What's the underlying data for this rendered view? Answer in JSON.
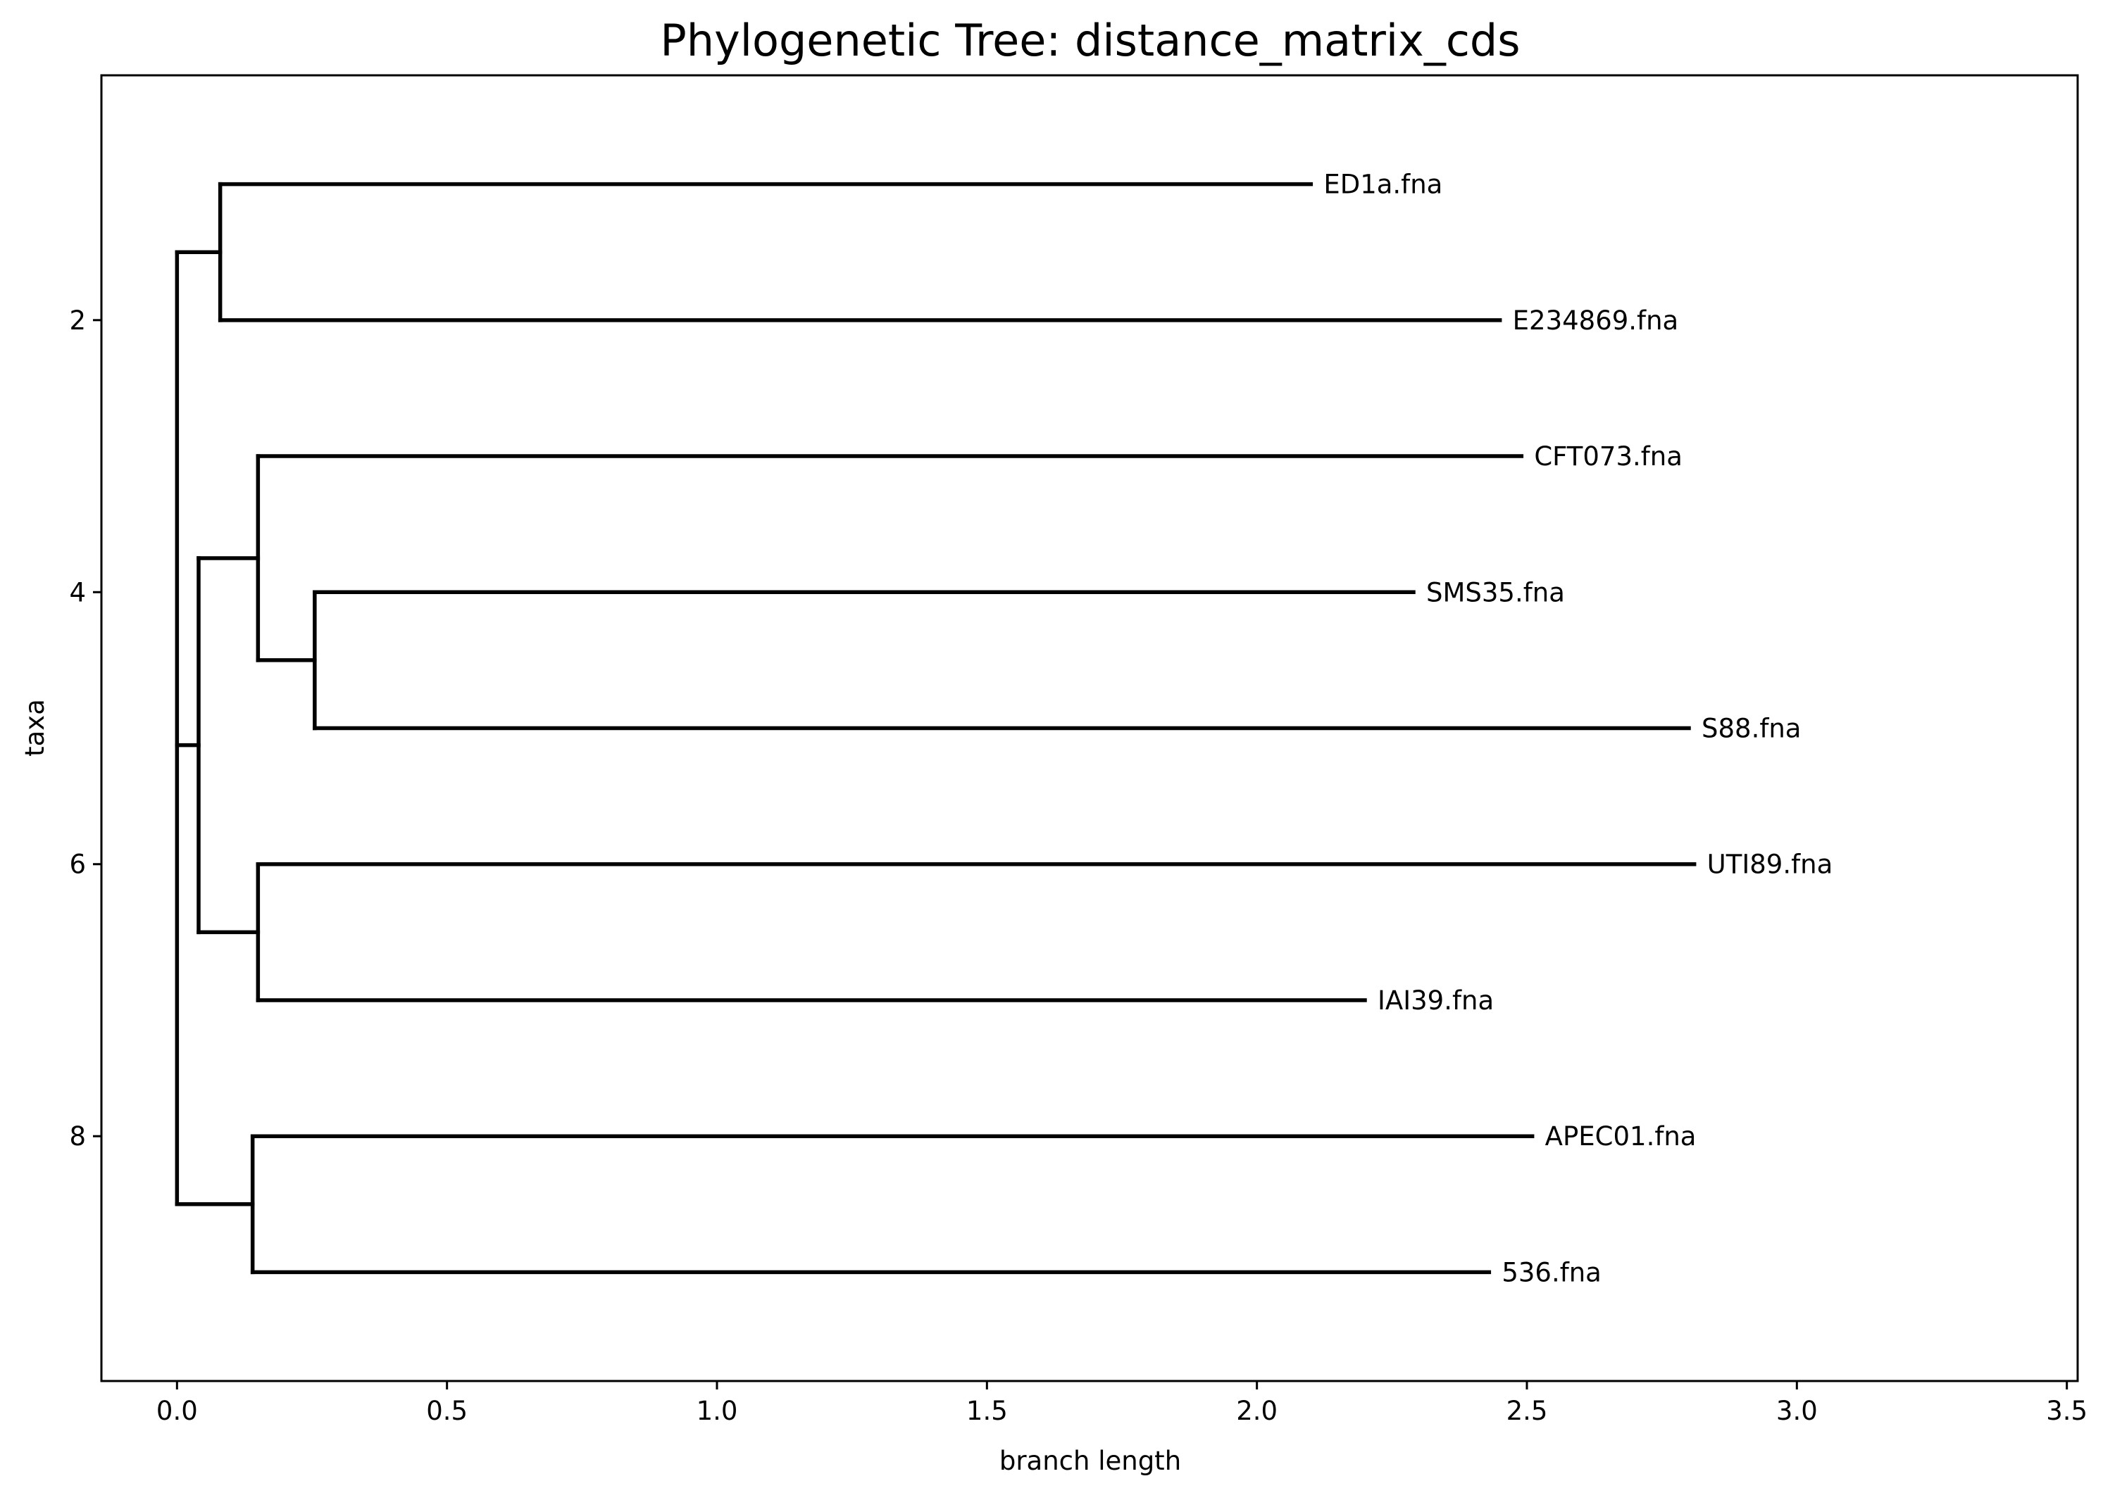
{
  "chart_data": {
    "type": "phylogenetic-tree",
    "title": "Phylogenetic Tree: distance_matrix_cds",
    "xlabel": "branch length",
    "ylabel": "taxa",
    "xlim": [
      -0.14,
      3.52
    ],
    "ylim": [
      9.8,
      0.2
    ],
    "x_ticks": [
      0.0,
      0.5,
      1.0,
      1.5,
      2.0,
      2.5,
      3.0,
      3.5
    ],
    "y_ticks": [
      2,
      4,
      6,
      8
    ],
    "leaves": [
      {
        "name": "ED1a.fna",
        "y": 1,
        "x": 2.1
      },
      {
        "name": "E234869.fna",
        "y": 2,
        "x": 2.45
      },
      {
        "name": "CFT073.fna",
        "y": 3,
        "x": 2.49
      },
      {
        "name": "SMS35.fna",
        "y": 4,
        "x": 2.29
      },
      {
        "name": "S88.fna",
        "y": 5,
        "x": 2.8
      },
      {
        "name": "UTI89.fna",
        "y": 6,
        "x": 2.81
      },
      {
        "name": "IAI39.fna",
        "y": 7,
        "x": 2.2
      },
      {
        "name": "APEC01.fna",
        "y": 8,
        "x": 2.51
      },
      {
        "name": "536.fna",
        "y": 9,
        "x": 2.43
      }
    ],
    "clades": [
      {
        "id": "root",
        "x": 0.0,
        "y_span": [
          1.5,
          8.5
        ],
        "children": [
          "n1",
          "n2",
          "n6"
        ]
      },
      {
        "id": "n1",
        "x": 0.08,
        "y_span": [
          1,
          2
        ],
        "children": [
          "ED1a.fna",
          "E234869.fna"
        ]
      },
      {
        "id": "n2",
        "x": 0.04,
        "y_span": [
          3.75,
          6.5
        ],
        "children": [
          "n3",
          "n5"
        ]
      },
      {
        "id": "n3",
        "x": 0.15,
        "y_span": [
          3,
          4.5
        ],
        "children": [
          "CFT073.fna",
          "n4"
        ]
      },
      {
        "id": "n4",
        "x": 0.255,
        "y_span": [
          4,
          5
        ],
        "children": [
          "SMS35.fna",
          "S88.fna"
        ]
      },
      {
        "id": "n5",
        "x": 0.15,
        "y_span": [
          6,
          7
        ],
        "children": [
          "UTI89.fna",
          "IAI39.fna"
        ]
      },
      {
        "id": "n6",
        "x": 0.14,
        "y_span": [
          8,
          9
        ],
        "children": [
          "APEC01.fna",
          "536.fna"
        ]
      }
    ],
    "grid": false,
    "legend": "none"
  }
}
